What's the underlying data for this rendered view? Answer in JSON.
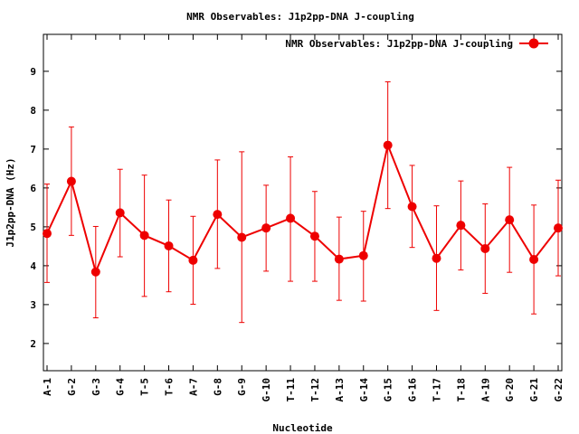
{
  "chart_data": {
    "type": "line",
    "title": "NMR Observables: J1p2pp-DNA J-coupling",
    "xlabel": "Nucleotide",
    "ylabel": "J1p2pp-DNA (Hz)",
    "ylim": [
      1.3,
      9.95
    ],
    "yticks": [
      2,
      3,
      4,
      5,
      6,
      7,
      8,
      9
    ],
    "grid": false,
    "legend_position": "top-right",
    "categories": [
      "A-1",
      "G-2",
      "G-3",
      "G-4",
      "T-5",
      "T-6",
      "A-7",
      "G-8",
      "G-9",
      "G-10",
      "T-11",
      "T-12",
      "A-13",
      "G-14",
      "G-15",
      "G-16",
      "T-17",
      "T-18",
      "A-19",
      "G-20",
      "G-21",
      "G-22"
    ],
    "series": [
      {
        "name": "NMR Observables: J1p2pp-DNA J-coupling",
        "color": "#ee0000",
        "values": [
          4.83,
          6.17,
          3.84,
          5.36,
          4.78,
          4.51,
          4.14,
          5.32,
          4.73,
          4.97,
          5.22,
          4.76,
          4.17,
          4.26,
          7.1,
          5.52,
          4.19,
          5.04,
          4.44,
          5.18,
          4.16,
          4.97
        ],
        "error_low": [
          3.57,
          4.78,
          2.66,
          4.23,
          3.21,
          3.33,
          3.01,
          3.93,
          2.54,
          3.86,
          3.6,
          3.6,
          3.11,
          3.09,
          5.47,
          4.47,
          2.85,
          3.89,
          3.29,
          3.83,
          2.76,
          3.74
        ],
        "error_high": [
          6.1,
          7.57,
          5.01,
          6.48,
          6.33,
          5.69,
          5.27,
          6.72,
          6.93,
          6.07,
          6.8,
          5.91,
          5.25,
          5.4,
          8.73,
          6.58,
          5.54,
          6.18,
          5.59,
          6.53,
          5.56,
          6.2
        ]
      }
    ]
  }
}
